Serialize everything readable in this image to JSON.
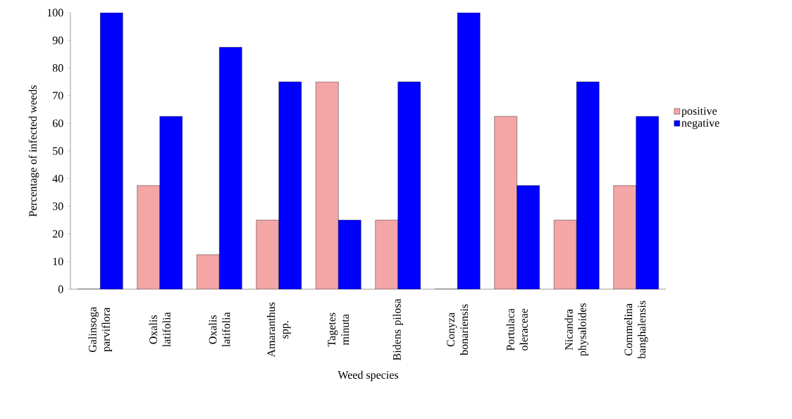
{
  "chart_data": {
    "type": "bar",
    "xlabel": "Weed species",
    "ylabel": "Percentage of infected weeds",
    "categories": [
      "Galinsoga parviflora",
      "Oxalis latifolia",
      "Oxalis latifolia",
      "Amaranthus spp.",
      "Tagetes minuta",
      "Bidens pilosa",
      "Conyza bonariensis",
      "Portulaca oleraceae",
      "Nicandra physaloides",
      "Commelina banghalensis"
    ],
    "series": [
      {
        "name": "positive",
        "color": "#f4a6a6",
        "values": [
          0,
          37.5,
          12.5,
          25,
          75,
          25,
          0,
          62.5,
          25,
          37.5
        ]
      },
      {
        "name": "negative",
        "color": "#0000ff",
        "values": [
          100,
          62.5,
          87.5,
          75,
          25,
          75,
          100,
          37.5,
          75,
          62.5
        ]
      }
    ],
    "ylim": [
      0,
      100
    ],
    "yticks": [
      0,
      10,
      20,
      30,
      40,
      50,
      60,
      70,
      80,
      90,
      100
    ],
    "grid": false,
    "legend": "right"
  }
}
